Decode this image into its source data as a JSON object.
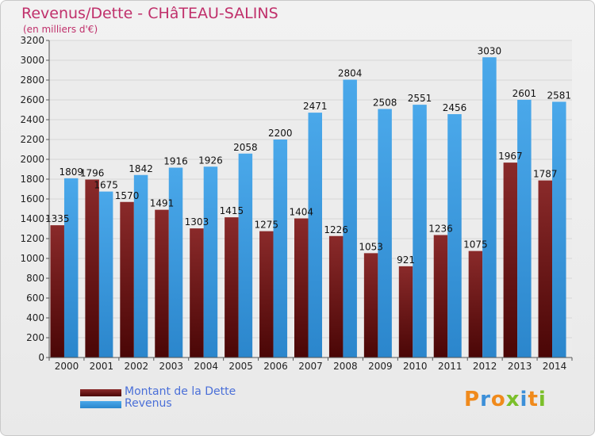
{
  "header": {
    "title": "Revenus/Dette - CHâTEAU-SALINS",
    "subtitle": "(en milliers d'€)"
  },
  "colors": {
    "title": "#c0306b",
    "dette": "#7a1c1c",
    "revenus": "#3f9fe6",
    "legend_text": "#4a6fd8"
  },
  "chart_data": {
    "type": "bar",
    "categories": [
      "2000",
      "2001",
      "2002",
      "2003",
      "2004",
      "2005",
      "2006",
      "2007",
      "2008",
      "2009",
      "2010",
      "2011",
      "2012",
      "2013",
      "2014"
    ],
    "series": [
      {
        "name": "Montant de la Dette",
        "values": [
          1335,
          1796,
          1570,
          1491,
          1303,
          1415,
          1275,
          1404,
          1226,
          1053,
          921,
          1236,
          1075,
          1967,
          1787
        ],
        "labels": [
          "1335",
          "1796",
          "1570",
          "1491",
          "1303",
          "1415",
          "1275",
          "1404",
          "1226",
          "1053",
          "921",
          "1236",
          "1075",
          "1967",
          "1787"
        ]
      },
      {
        "name": "Revenus",
        "values": [
          1809,
          1675,
          1842,
          1916,
          1926,
          2058,
          2200,
          2471,
          2804,
          2508,
          2551,
          2456,
          3030,
          2601,
          2581
        ],
        "labels": [
          "1809",
          "1675",
          "1842",
          "1916",
          "1926",
          "2058",
          "2200",
          "2471",
          "2804",
          "2508",
          "2551",
          "2456",
          "3030",
          "2601",
          "2581"
        ]
      }
    ],
    "ylim": [
      0,
      3200
    ],
    "yticks": [
      0,
      200,
      400,
      600,
      800,
      1000,
      1200,
      1400,
      1600,
      1800,
      2000,
      2200,
      2400,
      2600,
      2800,
      3000,
      3200
    ],
    "grid": true,
    "legend_placement": "bottom-left"
  },
  "legend": {
    "items": [
      {
        "label": "Montant de la Dette"
      },
      {
        "label": "Revenus"
      }
    ]
  },
  "logo": {
    "text": "Proxiti"
  }
}
